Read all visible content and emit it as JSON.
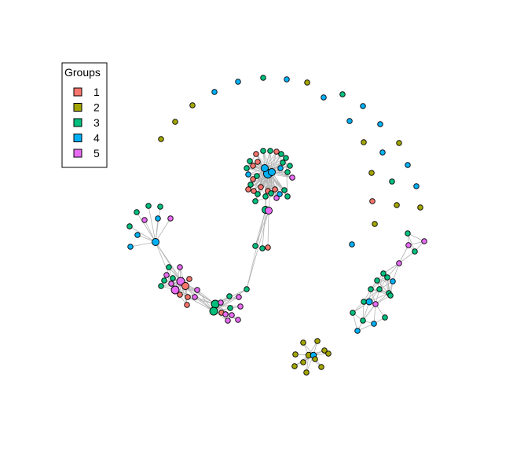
{
  "legend": {
    "title": "Groups",
    "items": [
      {
        "label": "1",
        "color": "#F8766D"
      },
      {
        "label": "2",
        "color": "#A3A500"
      },
      {
        "label": "3",
        "color": "#00BF7D"
      },
      {
        "label": "4",
        "color": "#00B0F6"
      },
      {
        "label": "5",
        "color": "#E76BF3"
      }
    ]
  },
  "styles": {
    "edge_color": "#b5b5b5",
    "node_stroke": "#000000"
  }
}
